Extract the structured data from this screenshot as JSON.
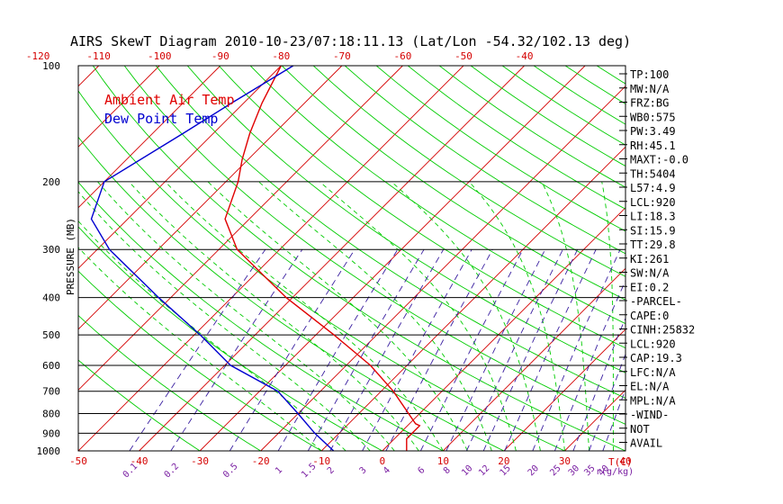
{
  "chart_data": {
    "type": "line",
    "title": "AIRS SkewT Diagram 2010-10-23/07:18:11.13 (Lat/Lon -54.32/102.13 deg)",
    "ylabel": "PRESSURE (MB)",
    "xlabel": "T(C)",
    "mixing_ratio_label": "r(g/kg)",
    "pressure_ticks": [
      100,
      200,
      300,
      400,
      500,
      600,
      700,
      800,
      900,
      1000
    ],
    "temperature_ticks_bottom": [
      -50,
      -40,
      -30,
      -20,
      -10,
      0,
      10,
      20,
      30,
      40
    ],
    "temperature_ticks_top": [
      -120,
      -110,
      -100,
      -90,
      -80,
      -70,
      -60,
      -50,
      -40
    ],
    "mixing_ratio_ticks": [
      "0.1",
      "0.2",
      "0.5",
      "1",
      "1.5",
      "2",
      "3",
      "4",
      "6",
      "8",
      "10",
      "12",
      "15",
      "20",
      "25",
      "30",
      "35",
      "40"
    ],
    "legend": [
      {
        "name": "Ambient Air Temp",
        "color": "#e00000"
      },
      {
        "name": "Dew Point Temp",
        "color": "#0000d0"
      }
    ],
    "series": [
      {
        "name": "Ambient Air Temp",
        "color": "#e00000",
        "points": [
          {
            "p": 100,
            "t": -80
          },
          {
            "p": 125,
            "t": -77
          },
          {
            "p": 150,
            "t": -74
          },
          {
            "p": 175,
            "t": -71
          },
          {
            "p": 200,
            "t": -68
          },
          {
            "p": 250,
            "t": -64
          },
          {
            "p": 300,
            "t": -57
          },
          {
            "p": 400,
            "t": -41
          },
          {
            "p": 500,
            "t": -27
          },
          {
            "p": 600,
            "t": -16
          },
          {
            "p": 700,
            "t": -8
          },
          {
            "p": 850,
            "t": 1
          },
          {
            "p": 860,
            "t": 2
          },
          {
            "p": 900,
            "t": 2
          },
          {
            "p": 930,
            "t": 2
          },
          {
            "p": 1000,
            "t": 4
          }
        ]
      },
      {
        "name": "Dew Point Temp",
        "color": "#0000d0",
        "points": [
          {
            "p": 100,
            "t": -78
          },
          {
            "p": 125,
            "t": -82
          },
          {
            "p": 150,
            "t": -85
          },
          {
            "p": 200,
            "t": -90
          },
          {
            "p": 250,
            "t": -86
          },
          {
            "p": 300,
            "t": -78
          },
          {
            "p": 400,
            "t": -62
          },
          {
            "p": 500,
            "t": -49
          },
          {
            "p": 600,
            "t": -39
          },
          {
            "p": 700,
            "t": -27
          },
          {
            "p": 800,
            "t": -20
          },
          {
            "p": 900,
            "t": -14
          },
          {
            "p": 1000,
            "t": -8
          }
        ]
      }
    ],
    "skew_range_bottom": [
      -50,
      40
    ],
    "ylim": [
      100,
      1000
    ],
    "grid": true,
    "legend_placement": "top-left"
  },
  "indices": [
    "TP:100",
    "MW:N/A",
    "FRZ:BG",
    "WB0:575",
    "PW:3.49",
    "RH:45.1",
    "MAXT:-0.0",
    "TH:5404",
    "L57:4.9",
    "LCL:920",
    "LI:18.3",
    "SI:15.9",
    "TT:29.8",
    "KI:261",
    "SW:N/A",
    "EI:0.2",
    "-PARCEL-",
    "CAPE:0",
    "CINH:25832",
    "LCL:920",
    "CAP:19.3",
    "LFC:N/A",
    "EL:N/A",
    "MPL:N/A",
    "-WIND-",
    "NOT",
    "AVAIL"
  ],
  "colors": {
    "isotherm": "#d40000",
    "dry_adiabat": "#00cc00",
    "moist_adiabat": "#00cc00",
    "mixing_ratio": "#3a1fa0",
    "isobar": "#000000"
  }
}
